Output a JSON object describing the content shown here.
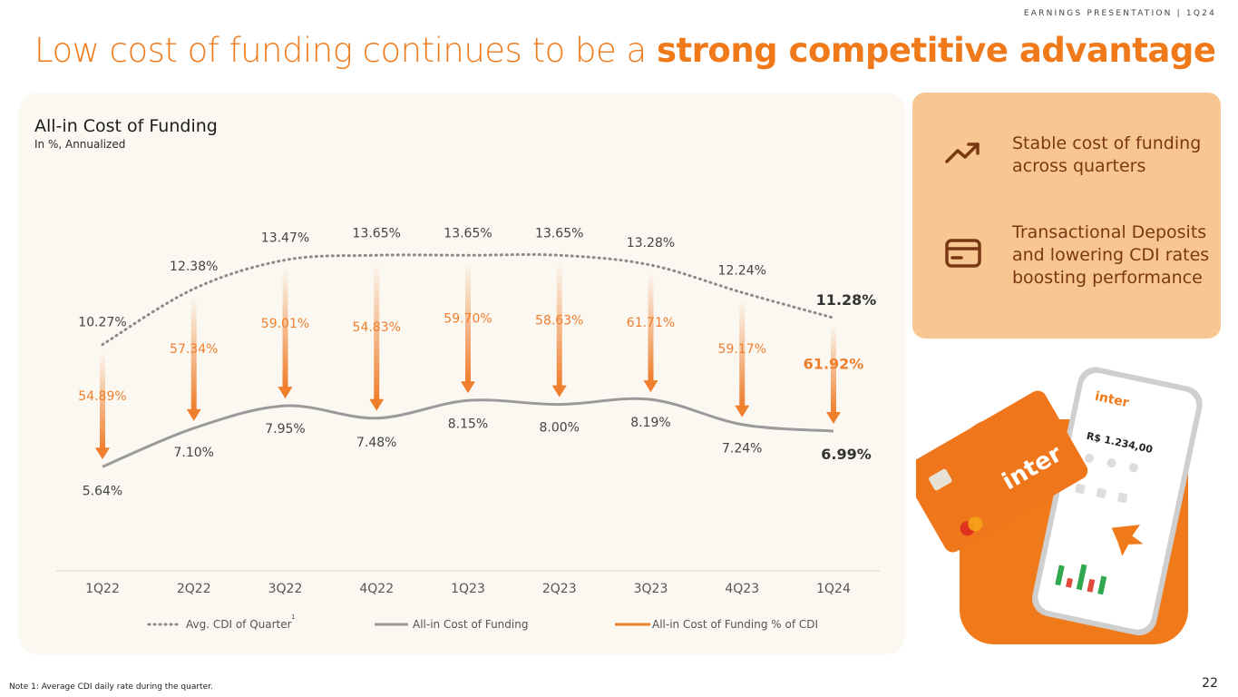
{
  "header": {
    "tag": "EARNINGS PRESENTATION | 1Q24"
  },
  "title": {
    "regular": "Low cost of funding continues to be a ",
    "bold": "strong competitive advantage"
  },
  "chart_data": {
    "type": "line",
    "title": "All-in Cost of Funding",
    "subtitle": "In %, Annualized",
    "categories": [
      "1Q22",
      "2Q22",
      "3Q22",
      "4Q22",
      "1Q23",
      "2Q23",
      "3Q23",
      "4Q23",
      "1Q24"
    ],
    "series": [
      {
        "name": "Avg. CDI of Quarter",
        "style": "dotted",
        "color": "#8a8a8a",
        "values": [
          10.27,
          12.38,
          13.47,
          13.65,
          13.65,
          13.65,
          13.28,
          12.24,
          11.28
        ],
        "labels": [
          "10.27%",
          "12.38%",
          "13.47%",
          "13.65%",
          "13.65%",
          "13.65%",
          "13.28%",
          "12.24%",
          "11.28%"
        ]
      },
      {
        "name": "All-in Cost of Funding",
        "style": "solid",
        "color": "#9a9a9a",
        "values": [
          5.64,
          7.1,
          7.95,
          7.48,
          8.15,
          8.0,
          8.19,
          7.24,
          6.99
        ],
        "labels": [
          "5.64%",
          "7.10%",
          "7.95%",
          "7.48%",
          "8.15%",
          "8.00%",
          "8.19%",
          "7.24%",
          "6.99%"
        ]
      },
      {
        "name": "All-in Cost of Funding % of CDI",
        "style": "arrow",
        "color": "#ef7f2d",
        "values": [
          54.89,
          57.34,
          59.01,
          54.83,
          59.7,
          58.63,
          61.71,
          59.17,
          61.92
        ],
        "labels": [
          "54.89%",
          "57.34%",
          "59.01%",
          "54.83%",
          "59.70%",
          "58.63%",
          "61.71%",
          "59.17%",
          "61.92%"
        ]
      }
    ],
    "legend": {
      "items": [
        "Avg. CDI of Quarter",
        "All-in Cost of Funding",
        "All-in Cost of Funding % of CDI"
      ],
      "footnote_marker": "1",
      "position": "bottom"
    },
    "ylim": [
      4,
      15
    ]
  },
  "highlights": [
    {
      "icon": "trend-up-icon",
      "text": "Stable cost of funding across quarters"
    },
    {
      "icon": "credit-card-icon",
      "text": "Transactional Deposits and lowering CDI rates boosting performance"
    }
  ],
  "promo": {
    "card_brand": "inter",
    "phone_brand": "inter",
    "balance": "R$ 1.234,00"
  },
  "footer": {
    "note": "Note 1: Average CDI daily rate during the quarter.",
    "page": "22"
  },
  "colors": {
    "accent": "#f07a1a",
    "card_bg": "#fbf8f2",
    "info_bg": "#f8c791",
    "info_text": "#7a3812"
  }
}
